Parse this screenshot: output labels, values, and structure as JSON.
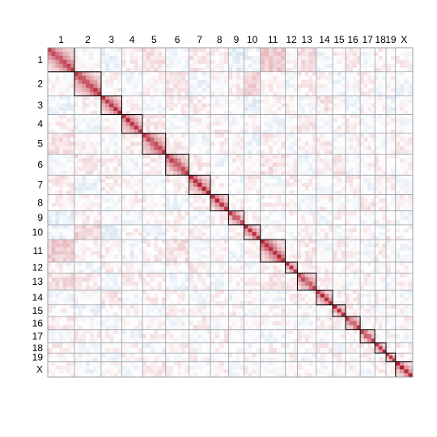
{
  "chart_data": {
    "type": "heatmap",
    "title": "",
    "description_free": true,
    "chromosomes": [
      "1",
      "2",
      "3",
      "4",
      "5",
      "6",
      "7",
      "8",
      "9",
      "10",
      "11",
      "12",
      "13",
      "14",
      "15",
      "16",
      "17",
      "18",
      "19",
      "X"
    ],
    "relative_sizes": [
      31,
      31,
      24,
      24,
      27,
      27,
      25,
      21,
      18,
      19,
      29,
      14,
      22,
      19,
      15,
      17,
      17,
      13,
      11,
      20
    ],
    "color_scale": {
      "negative": "#3a7ab8",
      "zero": "#ffffff",
      "positive": "#b2182b",
      "min": -1,
      "max": 1
    },
    "block_grid_color": "#9aa0a6",
    "diagonal_box_color": "#000000",
    "diagonal_value": 0.95,
    "off_diagonal_values": [
      [
        0.25,
        0.02,
        -0.08,
        0.06,
        0.12,
        -0.04,
        0.1,
        0.05,
        -0.1,
        -0.06,
        0.22,
        0.03,
        0.14,
        -0.05,
        0.04,
        0.08,
        -0.03,
        0.06,
        0.02,
        0.05
      ],
      [
        0.02,
        0.3,
        0.05,
        -0.06,
        0.03,
        0.1,
        -0.08,
        0.02,
        0.06,
        0.18,
        0.04,
        -0.05,
        0.08,
        0.03,
        -0.07,
        0.02,
        0.05,
        -0.04,
        0.03,
        -0.06
      ],
      [
        -0.08,
        0.05,
        0.28,
        0.04,
        -0.05,
        0.06,
        0.08,
        -0.03,
        0.02,
        -0.1,
        0.05,
        0.06,
        -0.04,
        0.1,
        0.03,
        -0.05,
        0.04,
        0.02,
        -0.06,
        0.03
      ],
      [
        0.06,
        -0.06,
        0.04,
        0.3,
        0.08,
        -0.05,
        0.03,
        0.07,
        -0.04,
        0.05,
        -0.06,
        0.02,
        0.09,
        -0.03,
        0.05,
        0.04,
        -0.05,
        0.03,
        0.06,
        -0.04
      ],
      [
        0.12,
        0.03,
        -0.05,
        0.08,
        0.32,
        0.06,
        -0.04,
        0.05,
        0.03,
        -0.08,
        0.07,
        -0.03,
        0.05,
        0.08,
        -0.04,
        0.03,
        0.06,
        -0.05,
        0.02,
        0.07
      ],
      [
        -0.04,
        0.1,
        0.06,
        -0.05,
        0.06,
        0.34,
        0.07,
        -0.06,
        0.05,
        0.04,
        0.12,
        0.05,
        -0.06,
        0.03,
        0.08,
        -0.04,
        0.02,
        0.06,
        -0.03,
        0.04
      ],
      [
        0.1,
        -0.08,
        0.08,
        0.03,
        -0.04,
        0.07,
        0.3,
        0.04,
        -0.05,
        0.06,
        -0.03,
        0.08,
        0.04,
        -0.06,
        0.03,
        0.07,
        -0.04,
        0.02,
        0.05,
        -0.03
      ],
      [
        0.05,
        0.02,
        -0.03,
        0.07,
        0.05,
        -0.06,
        0.04,
        0.28,
        0.06,
        -0.04,
        0.05,
        0.03,
        -0.05,
        0.06,
        0.02,
        -0.03,
        0.07,
        0.04,
        -0.02,
        0.05
      ],
      [
        -0.1,
        0.06,
        0.02,
        -0.04,
        0.03,
        0.05,
        -0.05,
        0.06,
        0.3,
        0.05,
        -0.06,
        0.04,
        0.03,
        -0.05,
        0.06,
        0.02,
        -0.04,
        0.05,
        0.03,
        -0.06
      ],
      [
        -0.06,
        0.18,
        -0.1,
        0.05,
        -0.08,
        0.04,
        0.06,
        -0.04,
        0.05,
        0.32,
        0.03,
        -0.06,
        0.05,
        0.04,
        -0.03,
        0.06,
        0.02,
        -0.05,
        0.04,
        0.03
      ],
      [
        0.22,
        0.04,
        0.05,
        -0.06,
        0.07,
        0.12,
        -0.03,
        0.05,
        -0.06,
        0.03,
        0.34,
        0.05,
        0.1,
        -0.04,
        0.06,
        0.03,
        -0.05,
        0.07,
        0.02,
        -0.04
      ],
      [
        0.03,
        -0.05,
        0.06,
        0.02,
        -0.03,
        0.05,
        0.08,
        0.03,
        0.04,
        -0.06,
        0.05,
        0.28,
        0.04,
        0.06,
        -0.03,
        0.05,
        0.02,
        -0.04,
        0.06,
        0.03
      ],
      [
        0.14,
        0.08,
        -0.04,
        0.09,
        0.05,
        -0.06,
        0.04,
        -0.05,
        0.03,
        0.05,
        0.1,
        0.04,
        0.3,
        0.05,
        0.03,
        -0.04,
        0.06,
        0.02,
        -0.05,
        0.04
      ],
      [
        -0.05,
        0.03,
        0.1,
        -0.03,
        0.08,
        0.03,
        -0.06,
        0.06,
        -0.05,
        0.04,
        -0.04,
        0.06,
        0.05,
        0.3,
        0.04,
        0.06,
        -0.03,
        0.05,
        0.02,
        -0.04
      ],
      [
        0.04,
        -0.07,
        0.03,
        0.05,
        -0.04,
        0.08,
        0.03,
        0.02,
        0.06,
        -0.03,
        0.06,
        -0.03,
        0.03,
        0.04,
        0.28,
        0.05,
        0.04,
        -0.03,
        0.06,
        0.02
      ],
      [
        0.08,
        0.02,
        -0.05,
        0.04,
        0.03,
        -0.04,
        0.07,
        -0.03,
        0.02,
        0.06,
        0.03,
        0.05,
        -0.04,
        0.06,
        0.05,
        0.3,
        0.03,
        0.05,
        -0.02,
        0.04
      ],
      [
        -0.03,
        0.05,
        0.04,
        -0.05,
        0.06,
        0.02,
        -0.04,
        0.07,
        -0.04,
        0.02,
        -0.05,
        0.02,
        0.06,
        -0.03,
        0.04,
        0.03,
        0.3,
        0.04,
        0.05,
        -0.03
      ],
      [
        0.06,
        -0.04,
        0.02,
        0.03,
        -0.05,
        0.06,
        0.02,
        0.04,
        0.05,
        -0.05,
        0.07,
        -0.04,
        0.02,
        0.05,
        -0.03,
        0.05,
        0.04,
        0.28,
        0.03,
        0.05
      ],
      [
        0.02,
        0.03,
        -0.06,
        0.06,
        0.02,
        -0.03,
        0.05,
        -0.02,
        0.03,
        0.04,
        0.02,
        0.06,
        -0.05,
        0.02,
        0.06,
        -0.02,
        0.05,
        0.03,
        0.28,
        0.04
      ],
      [
        0.05,
        -0.06,
        0.03,
        -0.04,
        0.07,
        0.04,
        -0.03,
        0.05,
        -0.06,
        0.03,
        -0.04,
        0.03,
        0.04,
        -0.04,
        0.02,
        0.04,
        -0.03,
        0.05,
        0.04,
        0.32
      ]
    ]
  }
}
